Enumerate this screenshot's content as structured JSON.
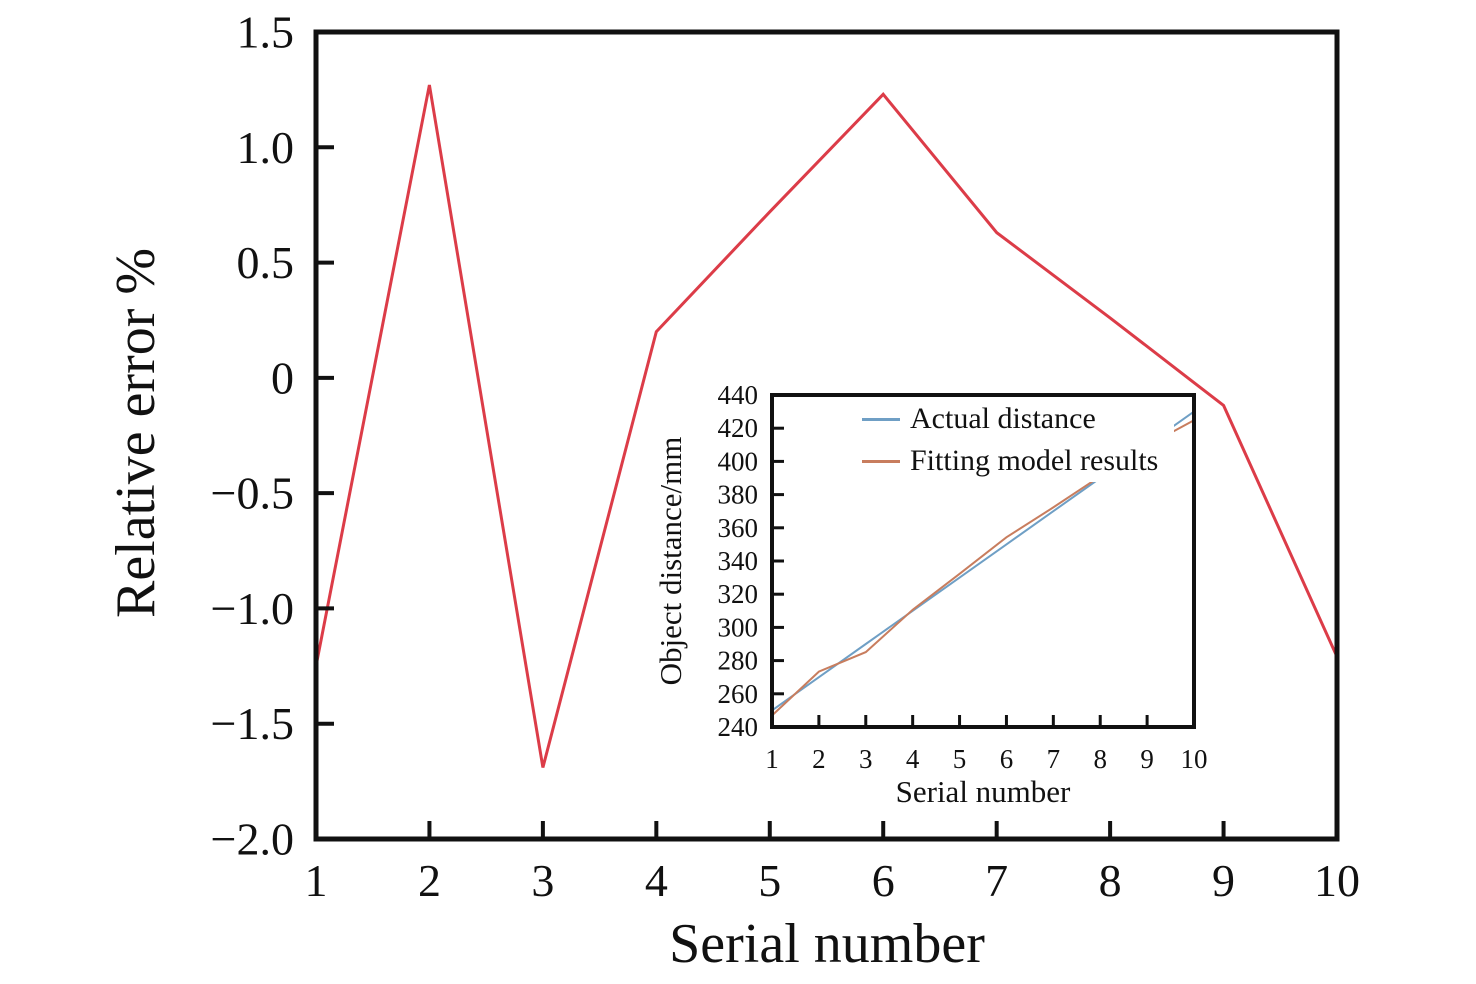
{
  "figure": {
    "background": "#ffffff",
    "frame_color": "#111111"
  },
  "chart_data": [
    {
      "type": "line",
      "title": "",
      "xlabel": "Serial number",
      "ylabel": "Relative error %",
      "x": [
        1,
        2,
        3,
        4,
        5,
        6,
        7,
        8,
        9,
        10
      ],
      "x_tick_labels": [
        "1",
        "2",
        "3",
        "4",
        "5",
        "6",
        "7",
        "8",
        "9",
        "10"
      ],
      "y_ticks": [
        -2.0,
        -1.5,
        -1.0,
        -0.5,
        0,
        0.5,
        1.0,
        1.5
      ],
      "y_tick_labels": [
        "−2.0",
        "−1.5",
        "−1.0",
        "−0.5",
        "0",
        "0.5",
        "1.0",
        "1.5"
      ],
      "xlim": [
        1,
        10
      ],
      "ylim": [
        -2.0,
        1.5
      ],
      "grid": false,
      "legend": null,
      "series": [
        {
          "name": "Relative error",
          "color": "#dc3c48",
          "values": [
            -1.25,
            1.27,
            -1.69,
            0.2,
            0.72,
            1.23,
            0.63,
            0.26,
            -0.12,
            -1.21
          ]
        }
      ]
    },
    {
      "type": "line",
      "title": "",
      "xlabel": "Serial number",
      "ylabel": "Object distance/mm",
      "x": [
        1,
        2,
        3,
        4,
        5,
        6,
        7,
        8,
        9,
        10
      ],
      "x_tick_labels": [
        "1",
        "2",
        "3",
        "4",
        "5",
        "6",
        "7",
        "8",
        "9",
        "10"
      ],
      "y_ticks": [
        240,
        260,
        280,
        300,
        320,
        340,
        360,
        380,
        400,
        420,
        440
      ],
      "y_tick_labels": [
        "240",
        "260",
        "280",
        "300",
        "320",
        "340",
        "360",
        "380",
        "400",
        "420",
        "440"
      ],
      "xlim": [
        1,
        10
      ],
      "ylim": [
        240,
        440
      ],
      "grid": false,
      "legend": {
        "position": "upper right",
        "entries": [
          "Actual distance",
          "Fitting model results"
        ]
      },
      "series": [
        {
          "name": "Actual distance",
          "color": "#6f9fc5",
          "values": [
            250,
            270,
            290,
            310,
            330,
            350,
            370,
            390,
            410,
            430
          ]
        },
        {
          "name": "Fitting model results",
          "color": "#c87d5e",
          "values": [
            246.9,
            273.4,
            285.1,
            310.6,
            332.3,
            354.3,
            372.3,
            391.0,
            409.5,
            424.8
          ]
        }
      ]
    }
  ]
}
